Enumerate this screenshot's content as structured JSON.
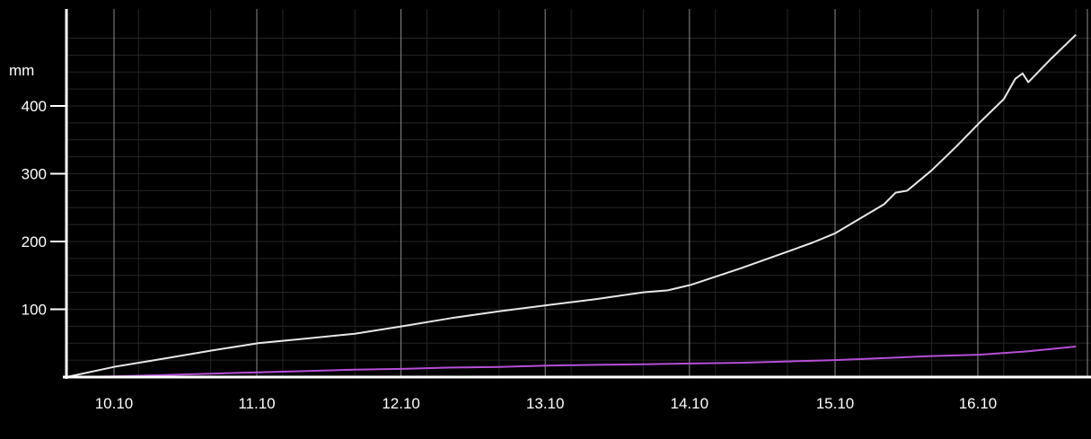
{
  "colors": {
    "background": "#000000",
    "axis": "#ffffff",
    "major_grid": "#8a8a8a",
    "minor_grid": "#262626"
  },
  "chart_data": {
    "type": "line",
    "xlabel": "",
    "ylabel": "mm",
    "x_ticks": [
      "10.10",
      "11.10",
      "12.10",
      "13.10",
      "14.10",
      "15.10",
      "16.10"
    ],
    "x_tick_positions": [
      0.33,
      1.32,
      2.32,
      3.32,
      4.32,
      5.33,
      6.32
    ],
    "xlim": [
      0,
      7.03
    ],
    "y_ticks": [
      100,
      200,
      300,
      400
    ],
    "ylim": [
      0,
      505
    ],
    "grid": true,
    "series": [
      {
        "color": "#e8e8e8",
        "x": [
          0,
          0.33,
          0.67,
          1.0,
          1.33,
          1.67,
          2.0,
          2.33,
          2.67,
          3.0,
          3.33,
          3.67,
          4.0,
          4.17,
          4.33,
          4.67,
          5.0,
          5.17,
          5.33,
          5.67,
          5.75,
          5.83,
          6.0,
          6.17,
          6.33,
          6.5,
          6.58,
          6.63,
          6.67,
          6.83,
          7.0
        ],
        "y": [
          0,
          15,
          27,
          39,
          50,
          57,
          64,
          75,
          87,
          97,
          106,
          115,
          125,
          128,
          136,
          160,
          185,
          198,
          212,
          255,
          272,
          275,
          305,
          340,
          375,
          410,
          440,
          448,
          435,
          470,
          505
        ]
      },
      {
        "color": "#b64fd8",
        "x": [
          0,
          0.33,
          0.67,
          1.0,
          1.33,
          1.67,
          2.0,
          2.33,
          2.67,
          3.0,
          3.33,
          3.67,
          4.0,
          4.33,
          4.67,
          5.0,
          5.33,
          5.67,
          6.0,
          6.33,
          6.67,
          7.0
        ],
        "y": [
          0,
          1,
          3,
          5,
          7,
          9,
          11,
          12,
          14,
          15,
          17,
          18,
          19,
          20,
          21,
          23,
          25,
          28,
          31,
          33,
          38,
          45
        ]
      }
    ]
  }
}
